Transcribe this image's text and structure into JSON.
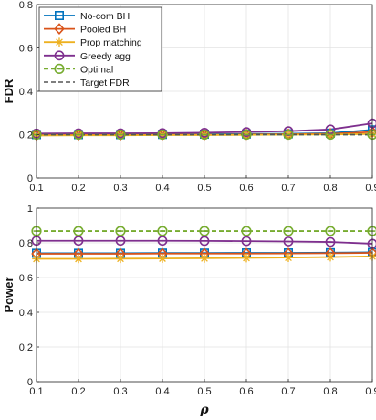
{
  "chart_data": [
    {
      "type": "line",
      "ylabel": "FDR",
      "xlabel": "",
      "x": [
        0.1,
        0.2,
        0.3,
        0.4,
        0.5,
        0.6,
        0.7,
        0.8,
        0.9
      ],
      "xticks": [
        "0.1",
        "0.2",
        "0.3",
        "0.4",
        "0.5",
        "0.6",
        "0.7",
        "0.8",
        "0.9"
      ],
      "ylim": [
        0,
        0.8
      ],
      "yticks": [
        "0",
        "0.2",
        "0.4",
        "0.6",
        "0.8"
      ],
      "grid": true,
      "legend": "top-left",
      "series": [
        {
          "name": "No-com BH",
          "color": "#0072BD",
          "marker": "square",
          "dash": "solid",
          "values": [
            0.2,
            0.2,
            0.2,
            0.201,
            0.202,
            0.203,
            0.204,
            0.207,
            0.222
          ]
        },
        {
          "name": "Pooled BH",
          "color": "#D95319",
          "marker": "diamond",
          "dash": "solid",
          "values": [
            0.198,
            0.199,
            0.199,
            0.2,
            0.2,
            0.201,
            0.202,
            0.204,
            0.212
          ]
        },
        {
          "name": "Prop matching",
          "color": "#EDB120",
          "marker": "star",
          "dash": "solid",
          "values": [
            0.196,
            0.197,
            0.197,
            0.198,
            0.198,
            0.199,
            0.2,
            0.201,
            0.203
          ]
        },
        {
          "name": "Greedy agg",
          "color": "#7E2F8E",
          "marker": "circle",
          "dash": "solid",
          "values": [
            0.205,
            0.206,
            0.206,
            0.207,
            0.209,
            0.212,
            0.216,
            0.224,
            0.252
          ]
        },
        {
          "name": "Optimal",
          "color": "#77AC30",
          "marker": "circle-minus",
          "dash": "dashed",
          "values": [
            0.2,
            0.2,
            0.2,
            0.2,
            0.2,
            0.2,
            0.2,
            0.2,
            0.2
          ]
        },
        {
          "name": "Target FDR",
          "color": "#555555",
          "marker": "none",
          "dash": "dashed",
          "values": [
            0.2,
            0.2,
            0.2,
            0.2,
            0.2,
            0.2,
            0.2,
            0.2,
            0.2
          ]
        }
      ]
    },
    {
      "type": "line",
      "ylabel": "Power",
      "xlabel": "ρ",
      "x": [
        0.1,
        0.2,
        0.3,
        0.4,
        0.5,
        0.6,
        0.7,
        0.8,
        0.9
      ],
      "xticks": [
        "0.1",
        "0.2",
        "0.3",
        "0.4",
        "0.5",
        "0.6",
        "0.7",
        "0.8",
        "0.9"
      ],
      "ylim": [
        0,
        1
      ],
      "yticks": [
        "0",
        "0.2",
        "0.4",
        "0.6",
        "0.8",
        "1"
      ],
      "grid": true,
      "series": [
        {
          "name": "No-com BH",
          "color": "#0072BD",
          "marker": "square",
          "dash": "solid",
          "values": [
            0.74,
            0.74,
            0.74,
            0.741,
            0.741,
            0.742,
            0.742,
            0.743,
            0.745
          ]
        },
        {
          "name": "Pooled BH",
          "color": "#D95319",
          "marker": "diamond",
          "dash": "solid",
          "values": [
            0.737,
            0.737,
            0.737,
            0.738,
            0.738,
            0.738,
            0.739,
            0.74,
            0.742
          ]
        },
        {
          "name": "Prop matching",
          "color": "#EDB120",
          "marker": "star",
          "dash": "solid",
          "values": [
            0.708,
            0.708,
            0.709,
            0.71,
            0.711,
            0.713,
            0.715,
            0.718,
            0.722
          ]
        },
        {
          "name": "Greedy agg",
          "color": "#7E2F8E",
          "marker": "circle",
          "dash": "solid",
          "values": [
            0.812,
            0.812,
            0.812,
            0.812,
            0.811,
            0.81,
            0.808,
            0.805,
            0.795
          ]
        },
        {
          "name": "Optimal",
          "color": "#77AC30",
          "marker": "circle-minus",
          "dash": "dashed",
          "values": [
            0.868,
            0.868,
            0.868,
            0.868,
            0.868,
            0.868,
            0.868,
            0.868,
            0.868
          ]
        }
      ]
    }
  ]
}
